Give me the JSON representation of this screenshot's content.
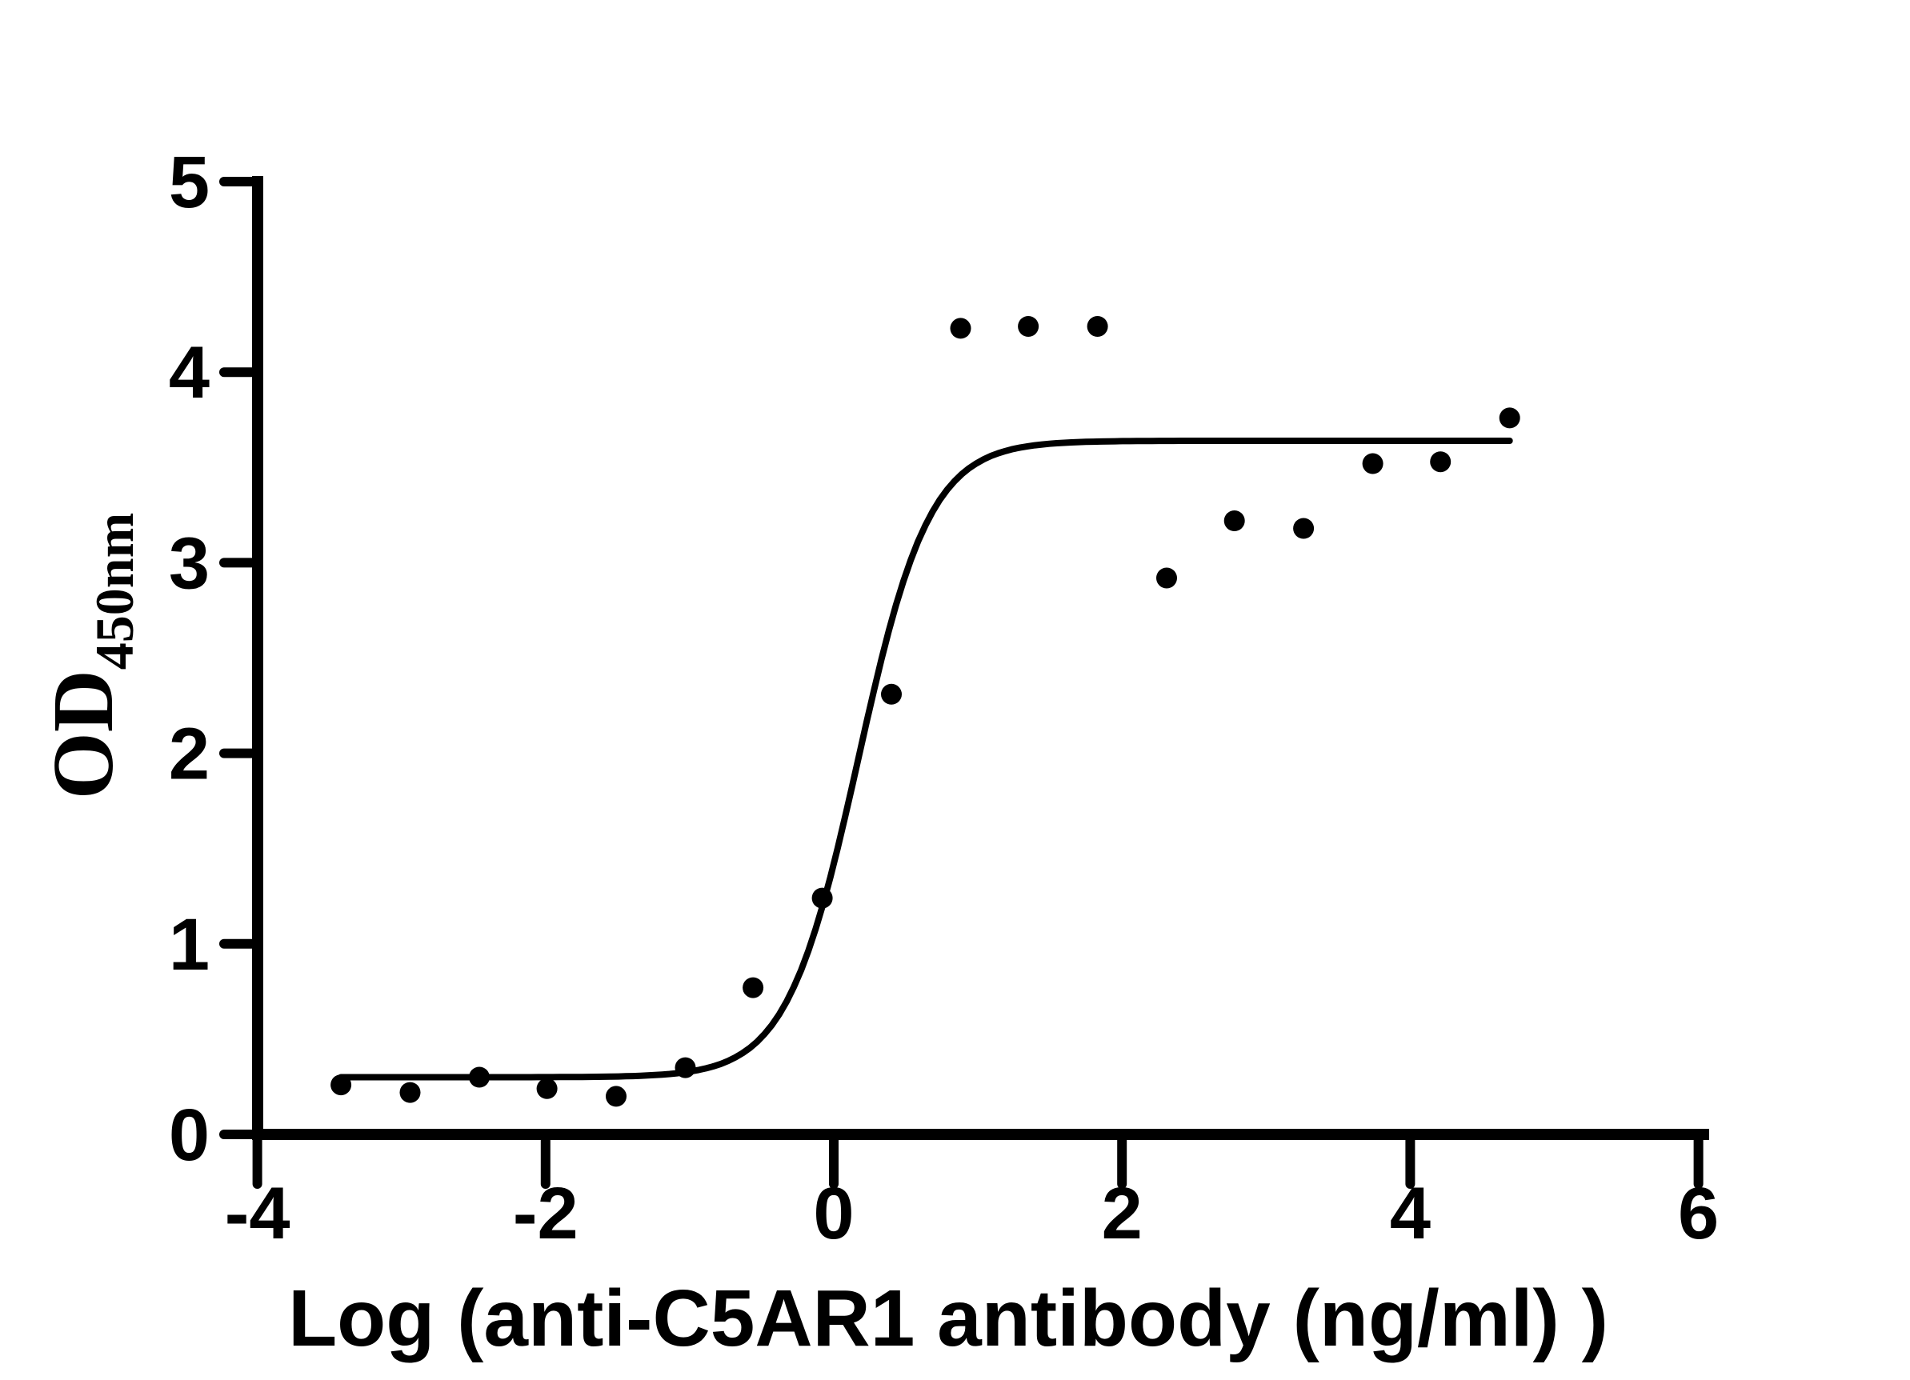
{
  "figure": {
    "background_color": "#ffffff",
    "ink_color": "#000000",
    "description": "ELISA activity dose-response curve, black scatter points with 4PL fitted sigmoid curve"
  },
  "chart_data": {
    "type": "scatter",
    "title": "",
    "xlabel": "Log (anti-C5AR1 antibody (ng/ml) )",
    "ylabel_main": "OD",
    "ylabel_sub": "450nm",
    "xlim": [
      -4,
      6
    ],
    "ylim": [
      0,
      5
    ],
    "x_ticks": [
      -4,
      -2,
      0,
      2,
      4,
      6
    ],
    "y_ticks": [
      0,
      1,
      2,
      3,
      4,
      5
    ],
    "grid": false,
    "legend": "none",
    "marker": {
      "shape": "circle",
      "color": "#000000",
      "radius_px": 13
    },
    "points": [
      {
        "log_conc": -3.42,
        "od": 0.26
      },
      {
        "log_conc": -2.94,
        "od": 0.22
      },
      {
        "log_conc": -2.46,
        "od": 0.3
      },
      {
        "log_conc": -1.99,
        "od": 0.24
      },
      {
        "log_conc": -1.51,
        "od": 0.2
      },
      {
        "log_conc": -1.03,
        "od": 0.35
      },
      {
        "log_conc": -0.56,
        "od": 0.77
      },
      {
        "log_conc": -0.08,
        "od": 1.24
      },
      {
        "log_conc": 0.4,
        "od": 2.31
      },
      {
        "log_conc": 0.88,
        "od": 4.23
      },
      {
        "log_conc": 1.35,
        "od": 4.24
      },
      {
        "log_conc": 1.83,
        "od": 4.24
      },
      {
        "log_conc": 2.31,
        "od": 2.92
      },
      {
        "log_conc": 2.78,
        "od": 3.22
      },
      {
        "log_conc": 3.26,
        "od": 3.18
      },
      {
        "log_conc": 3.74,
        "od": 3.52
      },
      {
        "log_conc": 4.21,
        "od": 3.53
      },
      {
        "log_conc": 4.69,
        "od": 3.76
      }
    ],
    "fit_curve": {
      "model": "4PL",
      "bottom": 0.3,
      "top": 3.64,
      "log_ec50": 0.17,
      "hill_slope": 1.75,
      "x_start": -3.42,
      "x_end": 4.69,
      "stroke_px": 8
    }
  }
}
